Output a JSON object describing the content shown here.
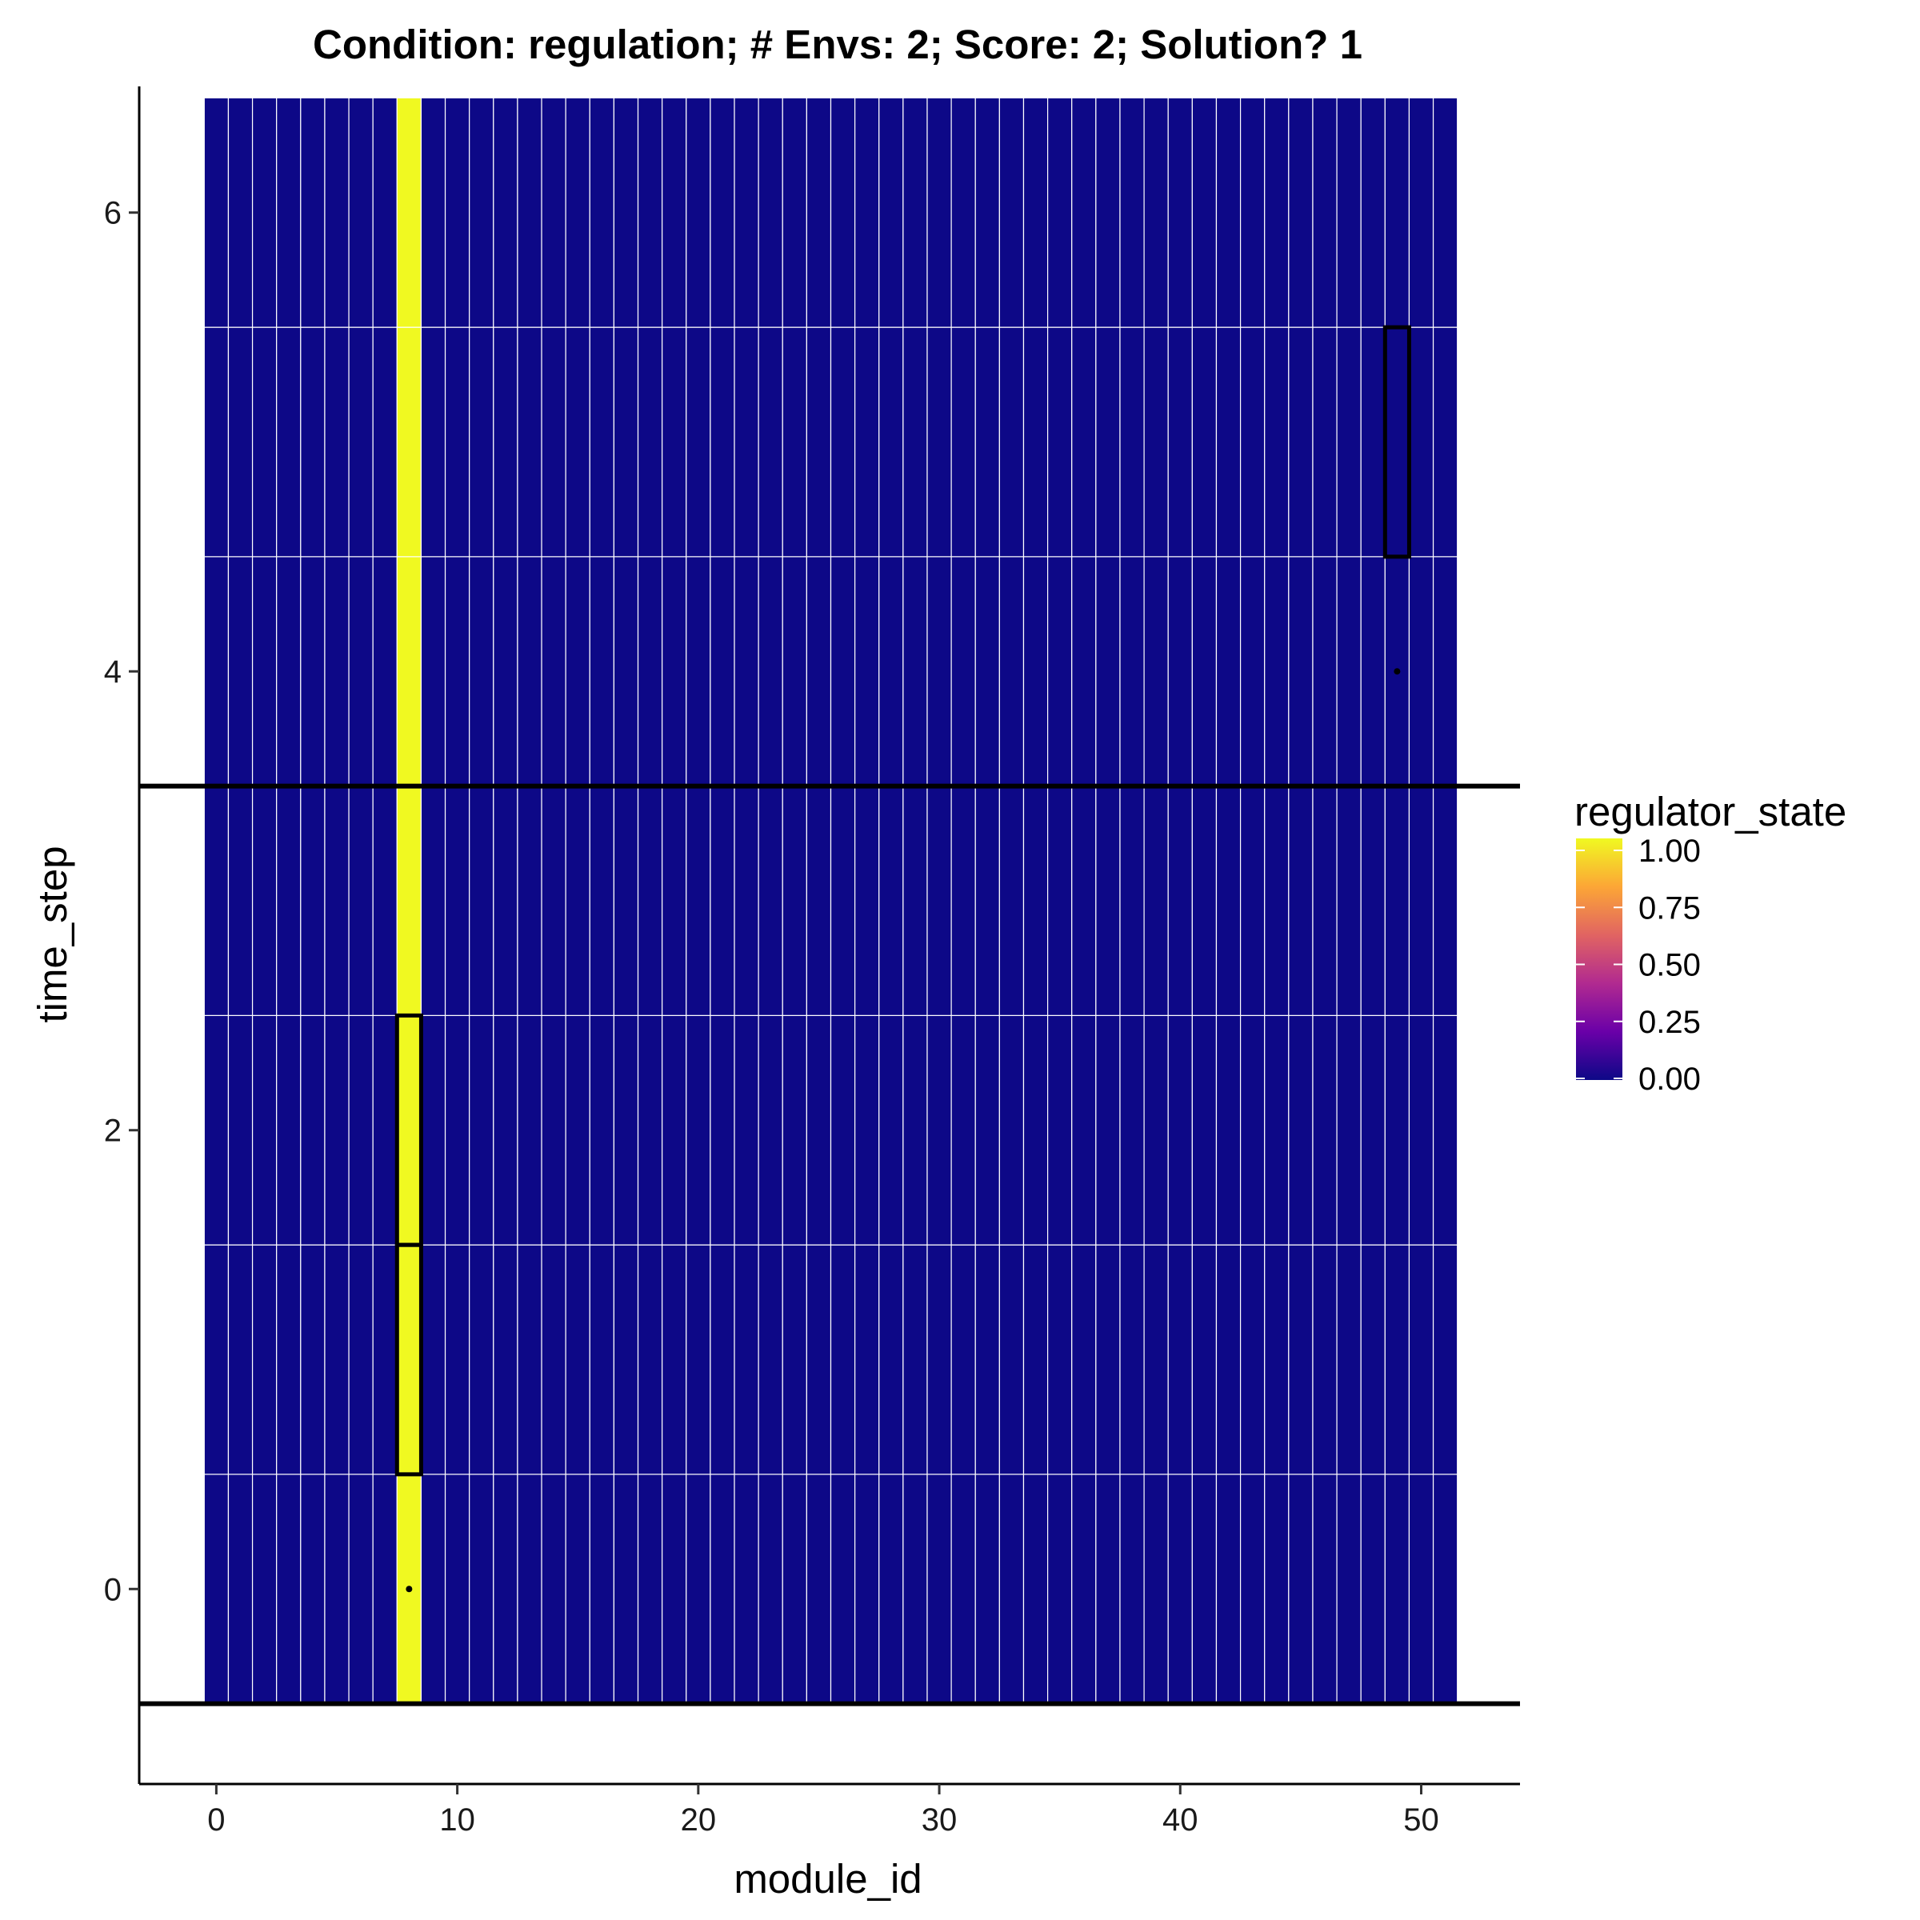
{
  "chart_data": {
    "type": "heatmap",
    "title": "Condition: regulation; # Envs: 2; Score: 2; Solution? 1",
    "xlabel": "module_id",
    "ylabel": "time_step",
    "x_ticks": [
      0,
      10,
      20,
      30,
      40,
      50
    ],
    "y_ticks": [
      0,
      2,
      4,
      6
    ],
    "xlim": [
      -3.2,
      54.1
    ],
    "ylim": [
      -0.85,
      6.55
    ],
    "modules": {
      "start": 0,
      "end": 51
    },
    "time_steps": [
      0,
      1,
      2,
      3,
      4,
      5,
      6
    ],
    "default_value": 0,
    "active_cells": [
      {
        "module_id": 8,
        "time_steps": [
          0,
          1,
          2,
          3,
          4,
          5,
          6
        ],
        "value": 1
      }
    ],
    "highlighted_cells": [
      {
        "module_id": 8,
        "time_step": 1
      },
      {
        "module_id": 8,
        "time_step": 2
      },
      {
        "module_id": 49,
        "time_step": 5
      }
    ],
    "points": [
      {
        "module_id": 8,
        "time_step": 0
      },
      {
        "module_id": 49,
        "time_step": 4
      }
    ],
    "hlines": [
      -0.5,
      3.5
    ],
    "legend": {
      "title": "regulator_state",
      "placement": "right",
      "breaks": [
        "1.00",
        "0.75",
        "0.50",
        "0.25",
        "0.00"
      ],
      "colormap": [
        "#0d0887",
        "#6a00a8",
        "#b12a90",
        "#e16462",
        "#fca636",
        "#f0f921"
      ]
    },
    "grid": false
  }
}
